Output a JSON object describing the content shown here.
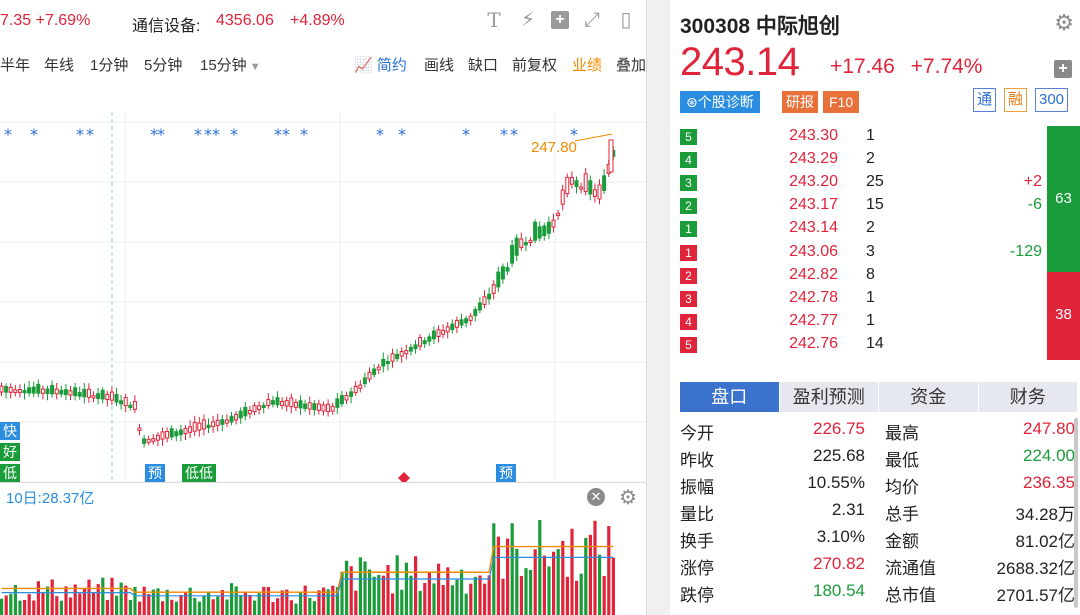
{
  "index_bar": {
    "item1_tail": "7.35",
    "item1_pct": "+7.69%",
    "item2_name": "通信设备:",
    "item2_value": "4356.06",
    "item2_pct": "+4.89%"
  },
  "toolbar_icons": [
    "text-icon",
    "lightning-icon",
    "plus-box-icon",
    "expand-icon",
    "panel-icon"
  ],
  "periods": {
    "half_year": "半年",
    "year": "年线",
    "min1": "1分钟",
    "min5": "5分钟",
    "min15": "15分钟",
    "simple": "简约",
    "draw": "画线",
    "gap": "缺口",
    "restore": "前复权",
    "performance": "业绩",
    "overlay": "叠加"
  },
  "chart": {
    "peak_label": "247.80",
    "left_tags": [
      "快",
      "好",
      "低"
    ],
    "bottom_tags": [
      "预",
      "低低",
      "预"
    ],
    "volume_label": "10日:28.37亿",
    "colors": {
      "up": "#e0243a",
      "down": "#1a9c3a",
      "ma": "#f08a00",
      "ma2": "#2a8de0"
    }
  },
  "stock": {
    "code_name": "300308 中际旭创",
    "price": "243.14",
    "change": "+17.46",
    "change_pct": "+7.74%",
    "diag_label": "个股诊断",
    "research_label": "研报",
    "f10_label": "F10",
    "badge1": "通",
    "badge2": "融",
    "badge3": "300"
  },
  "order_book": {
    "sell": [
      {
        "level": "5",
        "price": "243.30",
        "vol": "1",
        "diff": ""
      },
      {
        "level": "4",
        "price": "243.29",
        "vol": "2",
        "diff": ""
      },
      {
        "level": "3",
        "price": "243.20",
        "vol": "25",
        "diff": "+2"
      },
      {
        "level": "2",
        "price": "243.17",
        "vol": "15",
        "diff": "-6"
      },
      {
        "level": "1",
        "price": "243.14",
        "vol": "2",
        "diff": ""
      }
    ],
    "buy": [
      {
        "level": "1",
        "price": "243.06",
        "vol": "3",
        "diff": "-129"
      },
      {
        "level": "2",
        "price": "242.82",
        "vol": "8",
        "diff": ""
      },
      {
        "level": "3",
        "price": "242.78",
        "vol": "1",
        "diff": ""
      },
      {
        "level": "4",
        "price": "242.77",
        "vol": "1",
        "diff": ""
      },
      {
        "level": "5",
        "price": "242.76",
        "vol": "14",
        "diff": ""
      }
    ],
    "sell_total": "63",
    "buy_total": "38"
  },
  "tabs": [
    "盘口",
    "盈利预测",
    "资金",
    "财务"
  ],
  "stats": [
    {
      "k": "今开",
      "v": "226.75",
      "vc": "red",
      "k2": "最高",
      "v2": "247.80",
      "v2c": "red"
    },
    {
      "k": "昨收",
      "v": "225.68",
      "vc": "",
      "k2": "最低",
      "v2": "224.00",
      "v2c": "green"
    },
    {
      "k": "振幅",
      "v": "10.55%",
      "vc": "",
      "k2": "均价",
      "v2": "236.35",
      "v2c": "red"
    },
    {
      "k": "量比",
      "v": "2.31",
      "vc": "",
      "k2": "总手",
      "v2": "34.28万",
      "v2c": ""
    },
    {
      "k": "换手",
      "v": "3.10%",
      "vc": "",
      "k2": "金额",
      "v2": "81.02亿",
      "v2c": ""
    },
    {
      "k": "涨停",
      "v": "270.82",
      "vc": "red",
      "k2": "流通值",
      "v2": "2688.32亿",
      "v2c": ""
    },
    {
      "k": "跌停",
      "v": "180.54",
      "vc": "green",
      "k2": "总市值",
      "v2": "2701.57亿",
      "v2c": ""
    }
  ]
}
